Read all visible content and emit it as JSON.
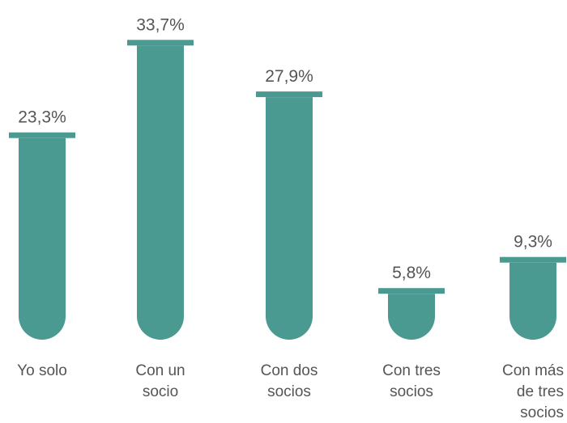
{
  "chart_data": {
    "type": "bar",
    "title": "",
    "xlabel": "",
    "ylabel": "",
    "categories": [
      [
        "Yo solo"
      ],
      [
        "Con un",
        "socio"
      ],
      [
        "Con dos",
        "socios"
      ],
      [
        "Con tres",
        "socios"
      ],
      [
        "Con más",
        "de tres",
        "socios"
      ]
    ],
    "values": [
      23.3,
      33.7,
      27.9,
      5.8,
      9.3
    ],
    "value_labels": [
      "23,3%",
      "33,7%",
      "27,9%",
      "5,8%",
      "9,3%"
    ],
    "ylim": [
      0,
      35
    ],
    "grid": false,
    "legend": "none",
    "colors": {
      "bar": "#4a9a91",
      "text": "#555555"
    }
  }
}
